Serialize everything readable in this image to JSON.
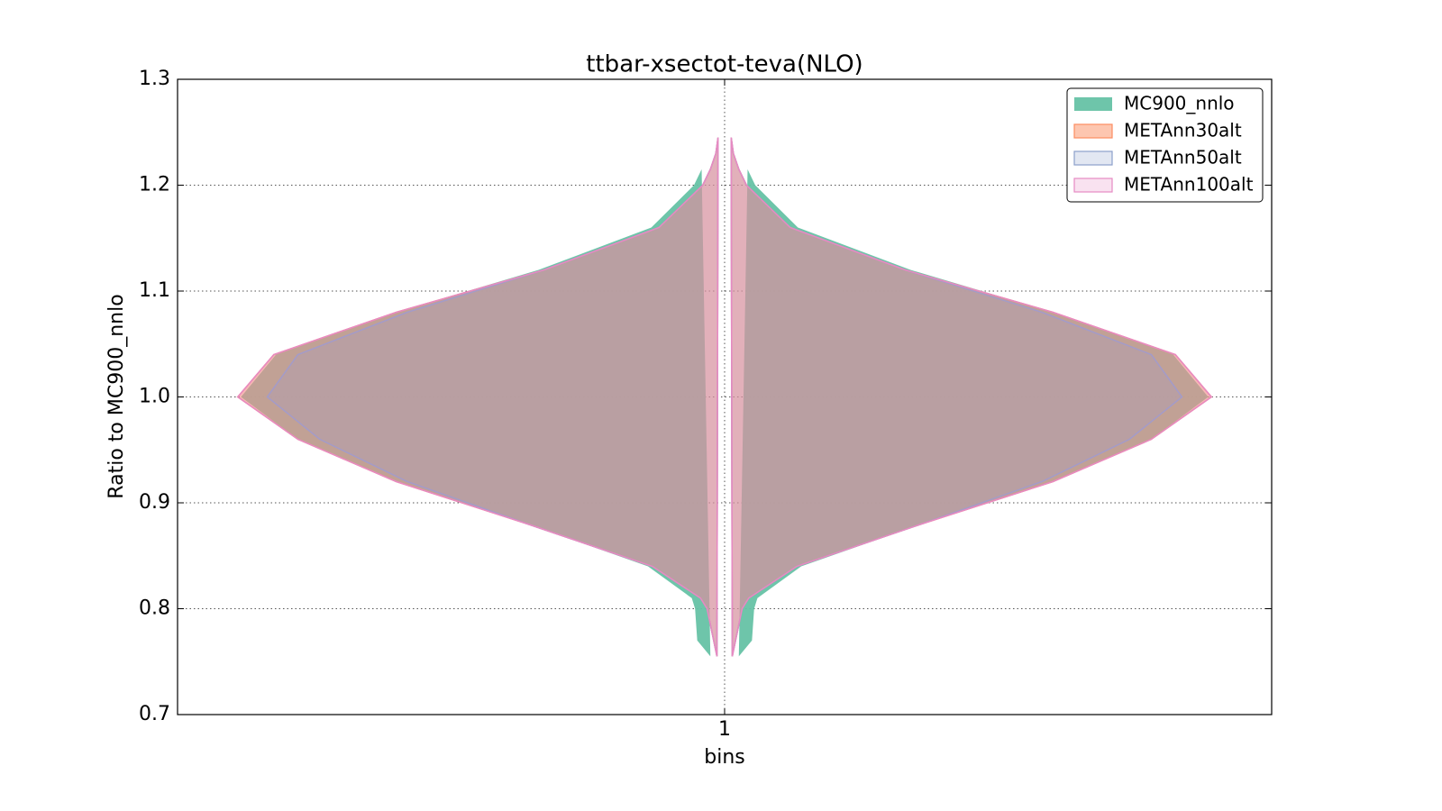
{
  "chart_data": {
    "type": "violin",
    "title": "ttbar-xsectot-teva(NLO)",
    "x_label": "bins",
    "y_label": "Ratio to MC900_nnlo",
    "xlim": [
      0.5,
      1.5
    ],
    "xticks": [
      1
    ],
    "ylim": [
      0.7,
      1.3
    ],
    "yticks": [
      0.7,
      0.8,
      0.9,
      1.0,
      1.1,
      1.2,
      1.3
    ],
    "grid": true,
    "legend": "upper right",
    "series": [
      {
        "name": "MC900_nnlo",
        "color": "#66c2a5",
        "y": [
          0.755,
          0.77,
          0.8,
          0.81,
          0.84,
          0.88,
          0.92,
          0.96,
          1.0,
          1.04,
          1.08,
          1.12,
          1.16,
          1.2,
          1.215
        ],
        "widths": [
          0.013,
          0.025,
          0.027,
          0.03,
          0.07,
          0.18,
          0.3,
          0.39,
          0.442,
          0.41,
          0.3,
          0.17,
          0.067,
          0.028,
          0.021
        ]
      },
      {
        "name": "METAnn30alt",
        "color": "#fc8d62",
        "y": [
          0.755,
          0.77,
          0.8,
          0.81,
          0.84,
          0.88,
          0.92,
          0.96,
          1.0,
          1.04,
          1.08,
          1.12,
          1.16,
          1.2,
          1.215,
          1.23,
          1.245
        ],
        "widths": [
          0.007,
          0.01,
          0.016,
          0.022,
          0.066,
          0.18,
          0.3,
          0.39,
          0.445,
          0.412,
          0.3,
          0.165,
          0.06,
          0.02,
          0.013,
          0.008,
          0.006
        ]
      },
      {
        "name": "METAnn50alt",
        "color": "#8da0cb",
        "y": [
          0.755,
          0.77,
          0.8,
          0.81,
          0.84,
          0.88,
          0.92,
          0.96,
          1.0,
          1.04,
          1.08,
          1.12,
          1.16,
          1.2,
          1.215,
          1.23,
          1.245
        ],
        "widths": [
          0.007,
          0.01,
          0.016,
          0.022,
          0.066,
          0.18,
          0.29,
          0.37,
          0.418,
          0.39,
          0.29,
          0.165,
          0.06,
          0.02,
          0.013,
          0.008,
          0.006
        ]
      },
      {
        "name": "METAnn100alt",
        "color": "#e78ac3",
        "y": [
          0.755,
          0.77,
          0.8,
          0.81,
          0.84,
          0.88,
          0.92,
          0.96,
          1.0,
          1.04,
          1.08,
          1.12,
          1.16,
          1.2,
          1.215,
          1.23,
          1.245
        ],
        "widths": [
          0.007,
          0.01,
          0.016,
          0.022,
          0.066,
          0.18,
          0.3,
          0.39,
          0.445,
          0.412,
          0.3,
          0.165,
          0.06,
          0.02,
          0.013,
          0.008,
          0.006
        ]
      }
    ]
  }
}
